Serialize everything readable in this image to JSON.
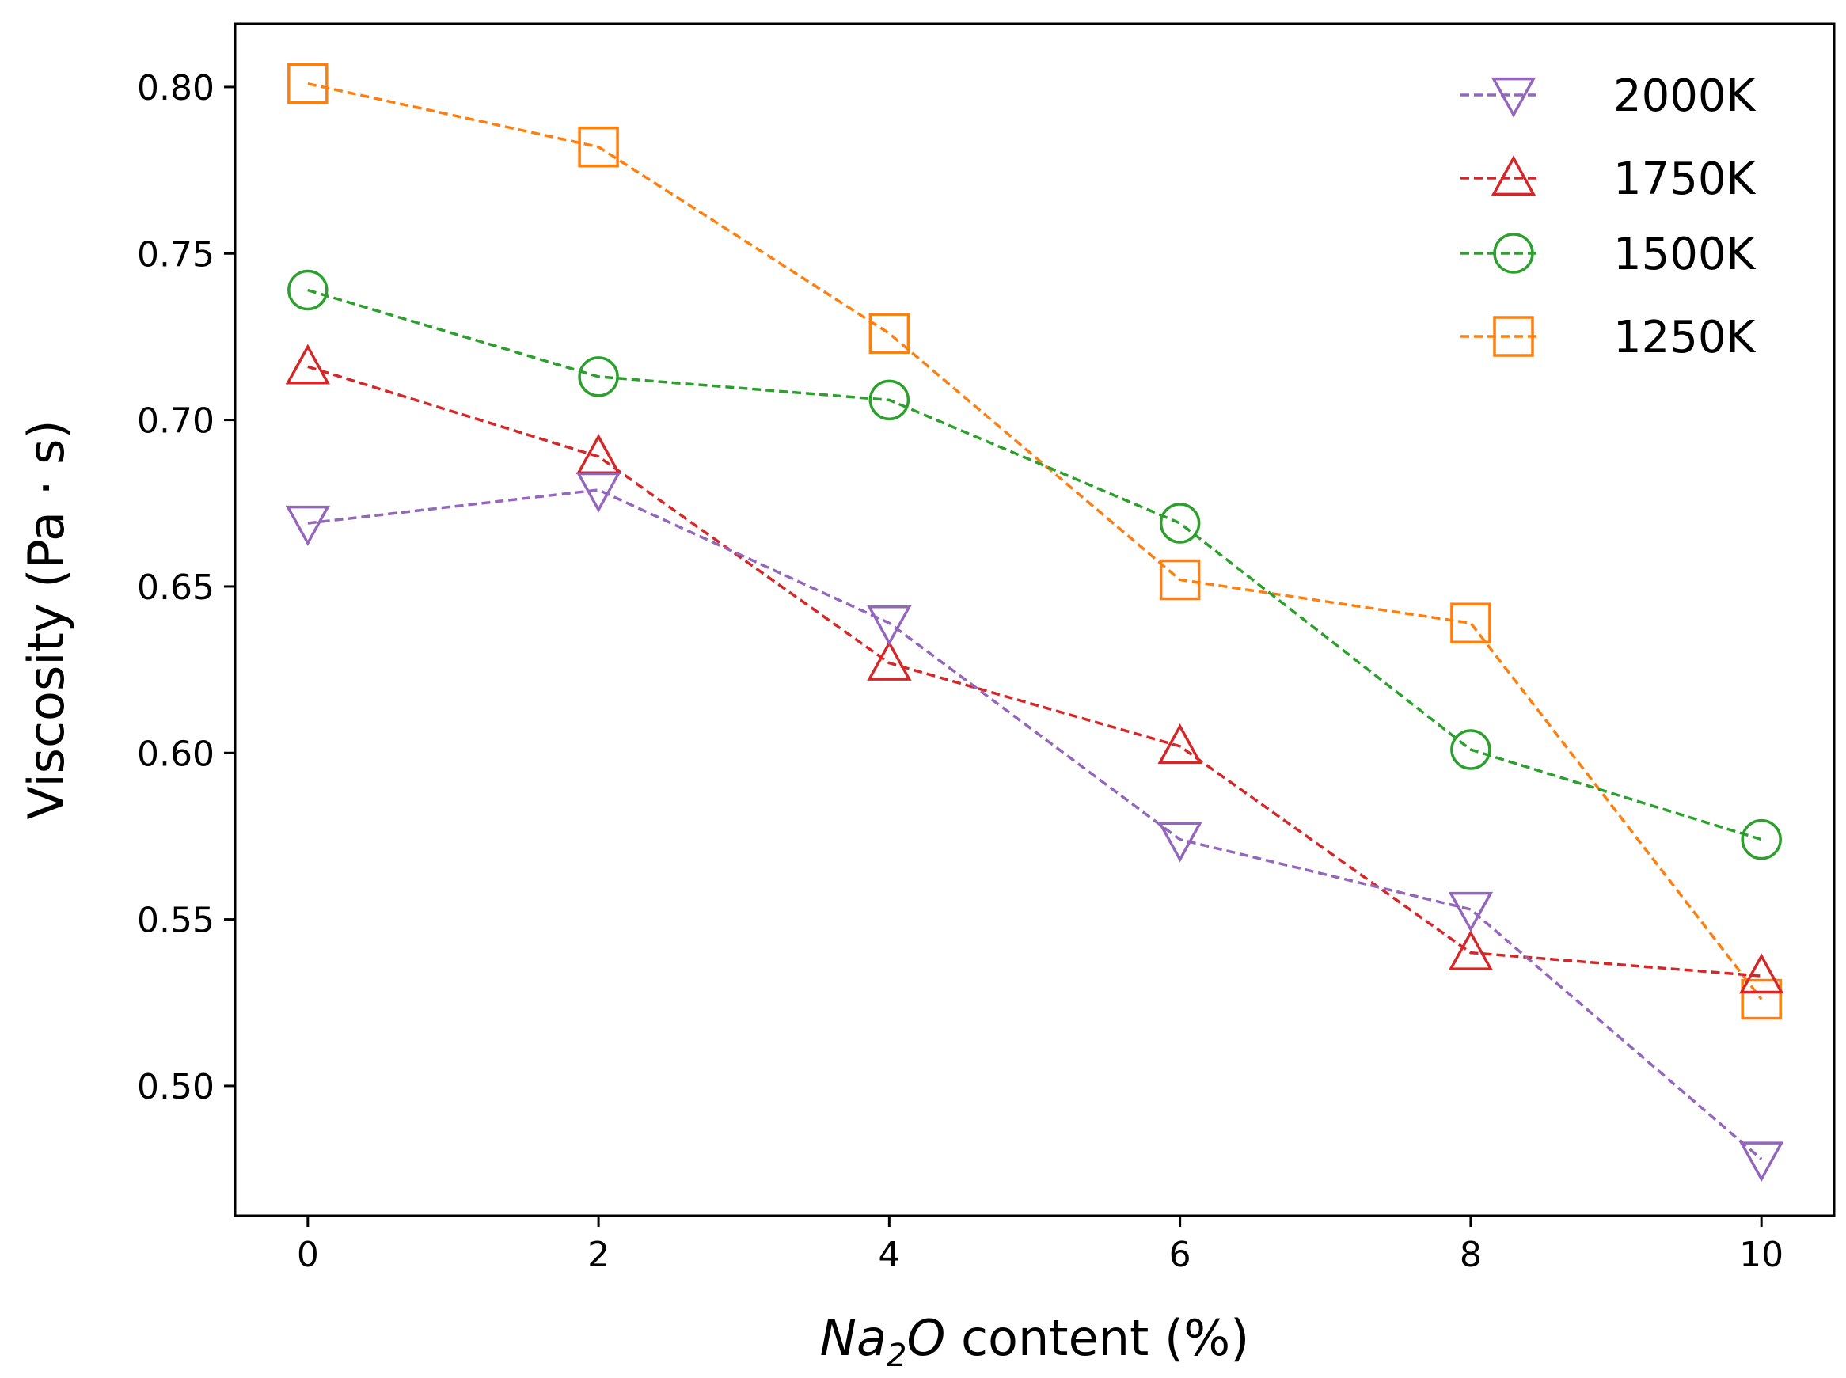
{
  "chart_data": {
    "type": "line",
    "title": "",
    "xlabel_italic": "Na",
    "xlabel_sub": "2",
    "xlabel_italic_tail": "O",
    "xlabel_rest": " content (%)",
    "ylabel": "Viscosity (Pa · s)",
    "x": [
      0,
      2,
      4,
      6,
      8,
      10
    ],
    "xlim": [
      -0.5,
      10.5
    ],
    "ylim": [
      0.461,
      0.819
    ],
    "xticks": [
      0,
      2,
      4,
      6,
      8,
      10
    ],
    "xtick_labels": [
      "0",
      "2",
      "4",
      "6",
      "8",
      "10"
    ],
    "yticks": [
      0.5,
      0.55,
      0.6,
      0.65,
      0.7,
      0.75,
      0.8
    ],
    "ytick_labels": [
      "0.50",
      "0.55",
      "0.60",
      "0.65",
      "0.70",
      "0.75",
      "0.80"
    ],
    "legend_position": "top-right",
    "series": [
      {
        "name": "2000K",
        "marker": "triangle-down-icon",
        "color": "#9467bd",
        "values": [
          0.669,
          0.679,
          0.639,
          0.574,
          0.553,
          0.478
        ]
      },
      {
        "name": "1750K",
        "marker": "triangle-up-icon",
        "color": "#d62728",
        "values": [
          0.716,
          0.689,
          0.627,
          0.602,
          0.54,
          0.533
        ]
      },
      {
        "name": "1500K",
        "marker": "circle-icon",
        "color": "#2ca02c",
        "values": [
          0.739,
          0.713,
          0.706,
          0.669,
          0.601,
          0.574
        ]
      },
      {
        "name": "1250K",
        "marker": "square-icon",
        "color": "#ff7f0e",
        "values": [
          0.801,
          0.782,
          0.726,
          0.652,
          0.639,
          0.526
        ]
      }
    ]
  }
}
